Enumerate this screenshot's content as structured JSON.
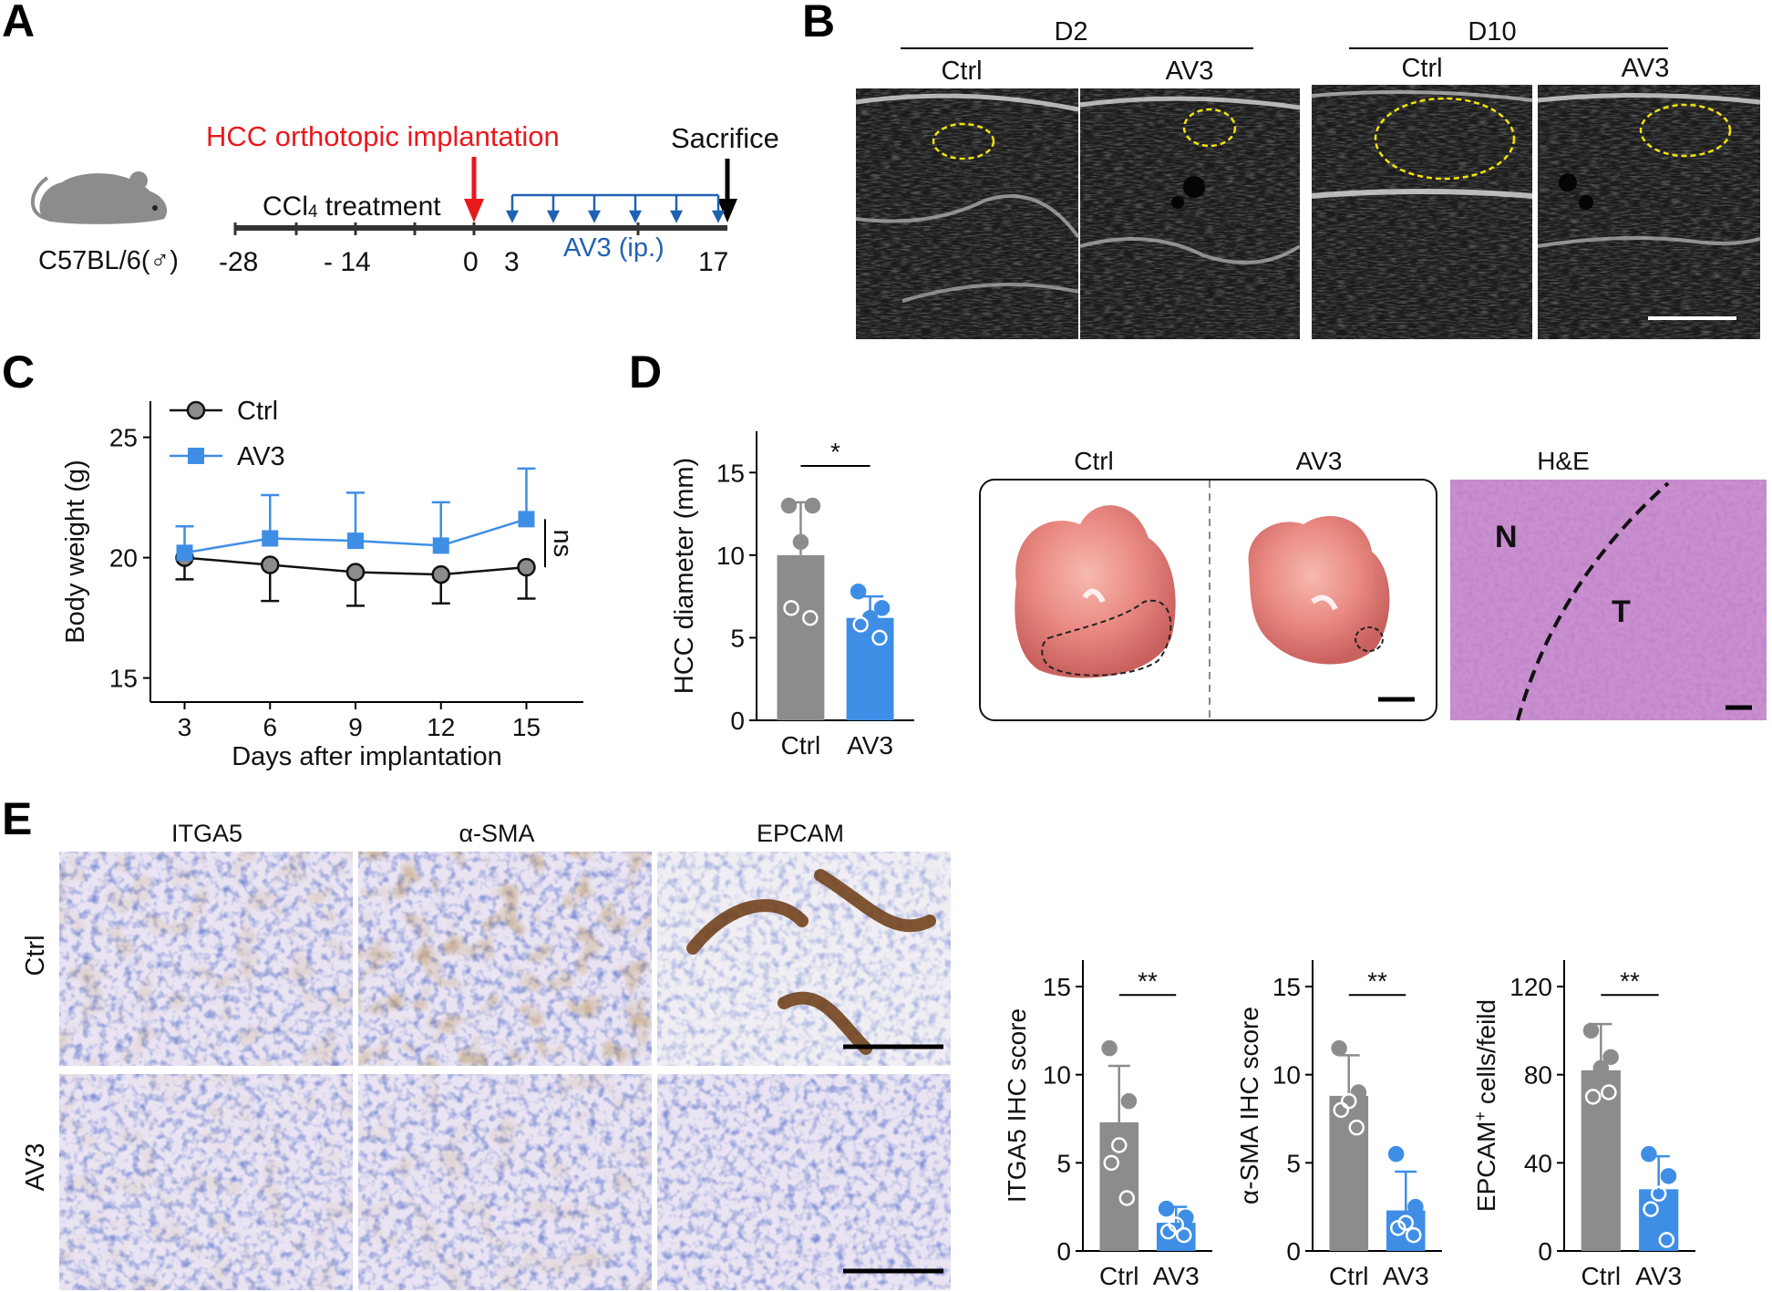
{
  "panels": {
    "A": "A",
    "B": "B",
    "C": "C",
    "D": "D",
    "E": "E"
  },
  "panel_a": {
    "strain": "C57BL/6(♂)",
    "implant_label": "HCC orthotopic implantation",
    "sacrifice_label": "Sacrifice",
    "ccl4_label": "CCl",
    "ccl4_sub": "4",
    "ccl4_rest": " treatment",
    "av3_label": "AV3 (ip.)",
    "ticks": [
      "-28",
      "- 14",
      "0",
      "3",
      "17"
    ],
    "colors": {
      "implant": "#e8191d",
      "av3": "#1f62b4",
      "timeline": "#333333"
    }
  },
  "panel_b": {
    "groups": [
      {
        "day": "D2",
        "subs": [
          "Ctrl",
          "AV3"
        ]
      },
      {
        "day": "D10",
        "subs": [
          "Ctrl",
          "AV3"
        ]
      }
    ]
  },
  "chart_c": {
    "type": "line",
    "x": [
      3,
      6,
      9,
      12,
      15
    ],
    "xlabel": "Days after implantation",
    "ylabel": "Body weight (g)",
    "ylim": [
      14,
      26.5
    ],
    "yticks": [
      15,
      20,
      25
    ],
    "ytick_labels": [
      "15",
      "20",
      "25"
    ],
    "xtick_labels": [
      "3",
      "6",
      "9",
      "12",
      "15"
    ],
    "annotation": "ns",
    "series": [
      {
        "name": "Ctrl",
        "values": [
          20.0,
          19.7,
          19.4,
          19.3,
          19.6
        ],
        "errors": [
          0.9,
          1.5,
          1.4,
          1.2,
          1.3
        ],
        "color": "#8c8c8c",
        "marker": "circle",
        "line": "#111111"
      },
      {
        "name": "AV3",
        "values": [
          20.2,
          20.8,
          20.7,
          20.5,
          21.6
        ],
        "errors": [
          1.1,
          1.8,
          2.0,
          1.8,
          2.1
        ],
        "color": "#3e8ee6",
        "marker": "square",
        "line": "#3e8ee6"
      }
    ]
  },
  "chart_d": {
    "type": "bar",
    "categories": [
      "Ctrl",
      "AV3"
    ],
    "values": [
      10.0,
      6.2
    ],
    "errors": [
      3.2,
      1.3
    ],
    "points": [
      [
        13.0,
        13.0,
        10.8,
        6.8,
        6.2
      ],
      [
        7.8,
        6.8,
        6.2,
        5.8,
        5.0
      ]
    ],
    "ylabel": "HCC diameter (mm)",
    "ylim": [
      0,
      17.5
    ],
    "yticks": [
      0,
      5,
      10,
      15
    ],
    "ytick_labels": [
      "0",
      "5",
      "10",
      "15"
    ],
    "significance": "*",
    "colors": [
      "#8c8c8c",
      "#3e8ee6"
    ]
  },
  "panel_d_images": {
    "ctrl": "Ctrl",
    "av3": "AV3",
    "he": "H&E",
    "n": "N",
    "t": "T"
  },
  "panel_e": {
    "stains": [
      "ITGA5",
      "α-SMA",
      "EPCAM"
    ],
    "rows": [
      "Ctrl",
      "AV3"
    ]
  },
  "charts_e": [
    {
      "type": "bar",
      "categories": [
        "Ctrl",
        "AV3"
      ],
      "values": [
        7.3,
        1.6
      ],
      "errors": [
        3.2,
        0.9
      ],
      "points": [
        [
          11.5,
          8.5,
          6.0,
          5.0,
          3.0
        ],
        [
          2.4,
          1.9,
          1.5,
          1.1,
          0.9
        ]
      ],
      "ylabel": "ITGA5 IHC score",
      "ylim": [
        0,
        16.5
      ],
      "yticks": [
        0,
        5,
        10,
        15
      ],
      "ytick_labels": [
        "0",
        "5",
        "10",
        "15"
      ],
      "significance": "**",
      "colors": [
        "#8c8c8c",
        "#3e8ee6"
      ]
    },
    {
      "type": "bar",
      "categories": [
        "Ctrl",
        "AV3"
      ],
      "values": [
        8.8,
        2.3
      ],
      "errors": [
        2.3,
        2.2
      ],
      "points": [
        [
          11.5,
          9.0,
          8.5,
          8.0,
          7.0
        ],
        [
          5.5,
          2.5,
          1.6,
          1.3,
          0.9
        ]
      ],
      "ylabel": "α-SMA IHC score",
      "ylim": [
        0,
        16.5
      ],
      "yticks": [
        0,
        5,
        10,
        15
      ],
      "ytick_labels": [
        "0",
        "5",
        "10",
        "15"
      ],
      "significance": "**",
      "colors": [
        "#8c8c8c",
        "#3e8ee6"
      ]
    },
    {
      "type": "bar",
      "categories": [
        "Ctrl",
        "AV3"
      ],
      "values": [
        82,
        28
      ],
      "errors": [
        21,
        15
      ],
      "points": [
        [
          100,
          88,
          83,
          70,
          72
        ],
        [
          44,
          34,
          26,
          19,
          5
        ]
      ],
      "ylabel": "EPCAM",
      "ylabel_sup": "+",
      "ylabel_rest": " cells/feild",
      "ylim": [
        0,
        132
      ],
      "yticks": [
        0,
        40,
        80,
        120
      ],
      "ytick_labels": [
        "0",
        "40",
        "80",
        "120"
      ],
      "significance": "**",
      "colors": [
        "#8c8c8c",
        "#3e8ee6"
      ]
    }
  ]
}
